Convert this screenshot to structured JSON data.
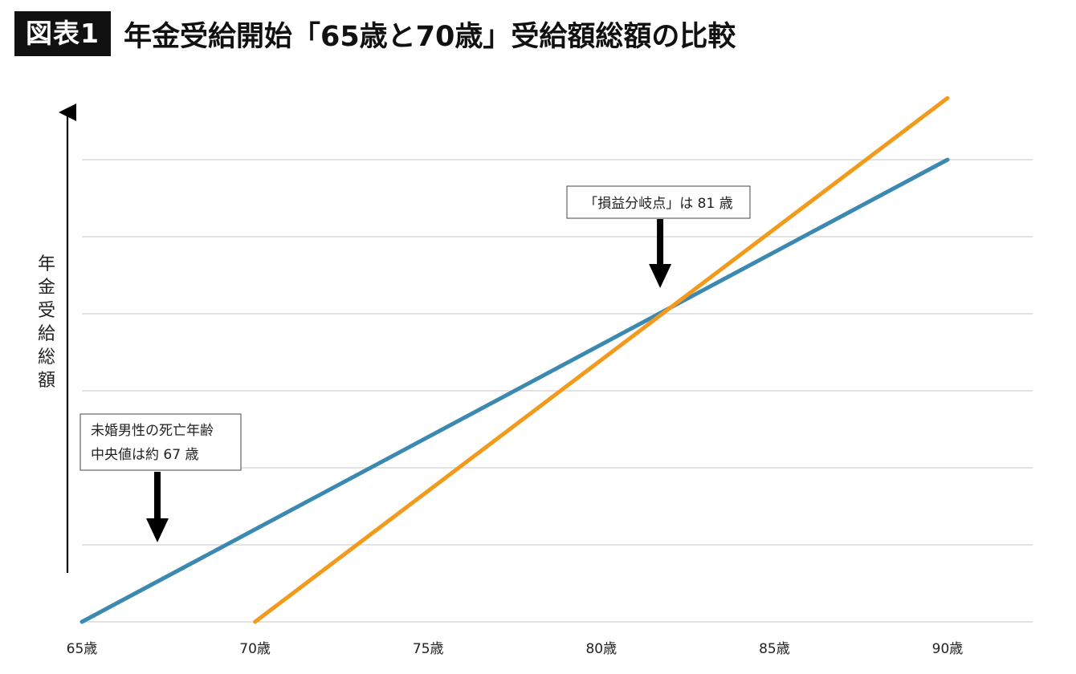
{
  "header": {
    "badge": "図表1",
    "title": "年金受給開始「65歳と70歳」受給額総額の比較"
  },
  "colors": {
    "series_65": "#3b89b1",
    "series_70": "#f29a1c",
    "grid": "#d9d9d9",
    "axis": "#000000"
  },
  "chart_data": {
    "type": "line",
    "title": "年金受給開始「65歳と70歳」受給額総額の比較",
    "xlabel": "",
    "ylabel": "年金受給総額",
    "x_tick_labels": [
      "65歳",
      "70歳",
      "75歳",
      "80歳",
      "85歳",
      "90歳"
    ],
    "x_ticks": [
      65,
      70,
      75,
      80,
      85,
      90
    ],
    "xlim": [
      65,
      90
    ],
    "ylim": [
      0,
      7.1
    ],
    "y_gridlines": [
      0,
      1,
      2,
      3,
      4,
      5,
      6
    ],
    "y_tick_labels_visible": false,
    "grid": true,
    "legend": "none",
    "series": [
      {
        "key": "start_65",
        "color": "#3b89b1",
        "x": [
          65,
          90
        ],
        "y": [
          0,
          6.0
        ]
      },
      {
        "key": "start_70",
        "color": "#f29a1c",
        "x": [
          70,
          90
        ],
        "y": [
          0,
          6.8
        ]
      }
    ],
    "annotations": [
      {
        "key": "breakeven",
        "lines": [
          "「損益分岐点」は 81 歳"
        ],
        "x": 81.7,
        "y": 4.0
      },
      {
        "key": "median_death",
        "lines": [
          "未婚男性の死亡年齢",
          "中央値は約 67 歳"
        ],
        "x": 67,
        "y": 1.0
      }
    ]
  }
}
